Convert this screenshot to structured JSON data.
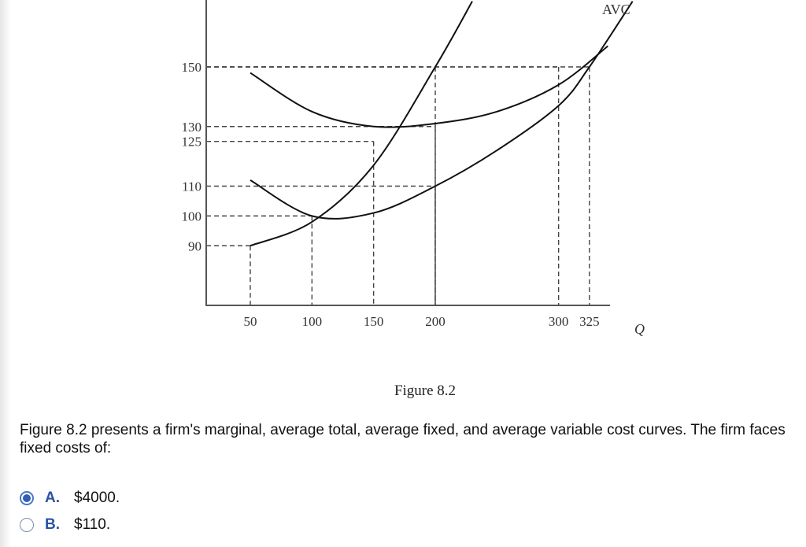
{
  "chart_data": {
    "type": "line",
    "title": "",
    "xlabel": "Q",
    "ylabel": "",
    "xlim": [
      0,
      380
    ],
    "ylim": [
      70,
      160
    ],
    "x_ticks": [
      "50",
      "100",
      "150",
      "200",
      "300",
      "325"
    ],
    "y_ticks": [
      "150",
      "130",
      "125",
      "110",
      "100",
      "90"
    ],
    "series": [
      {
        "name": "",
        "points": [
          [
            50,
            148
          ],
          [
            100,
            135
          ],
          [
            150,
            130
          ],
          [
            200,
            131
          ],
          [
            250,
            135
          ],
          [
            300,
            144
          ],
          [
            340,
            157
          ]
        ]
      },
      {
        "name": "",
        "points": [
          [
            50,
            90
          ],
          [
            100,
            98
          ],
          [
            150,
            117
          ],
          [
            200,
            150
          ],
          [
            230,
            172
          ]
        ]
      },
      {
        "name": "AVC",
        "points": [
          [
            50,
            112
          ],
          [
            100,
            100
          ],
          [
            150,
            101
          ],
          [
            200,
            110
          ],
          [
            250,
            122
          ],
          [
            300,
            137
          ],
          [
            325,
            150
          ],
          [
            360,
            172
          ]
        ]
      }
    ],
    "reference_points": [
      {
        "x": 50,
        "y": 90
      },
      {
        "x": 100,
        "y": 100
      },
      {
        "x": 150,
        "y": 125
      },
      {
        "x": 200,
        "y": 130
      },
      {
        "x": 200,
        "y": 110
      },
      {
        "x": 200,
        "y": 150
      },
      {
        "x": 300,
        "y": 150
      },
      {
        "x": 325,
        "y": 150
      }
    ]
  },
  "figure_caption": "Figure 8.2",
  "question": {
    "text": "Figure 8.2 presents a firm's marginal, average total, average fixed, and average variable cost curves. The firm faces fixed costs of:"
  },
  "options": [
    {
      "letter": "A.",
      "text": "$4000.",
      "selected": true
    },
    {
      "letter": "B.",
      "text": "$110.",
      "selected": false
    }
  ]
}
